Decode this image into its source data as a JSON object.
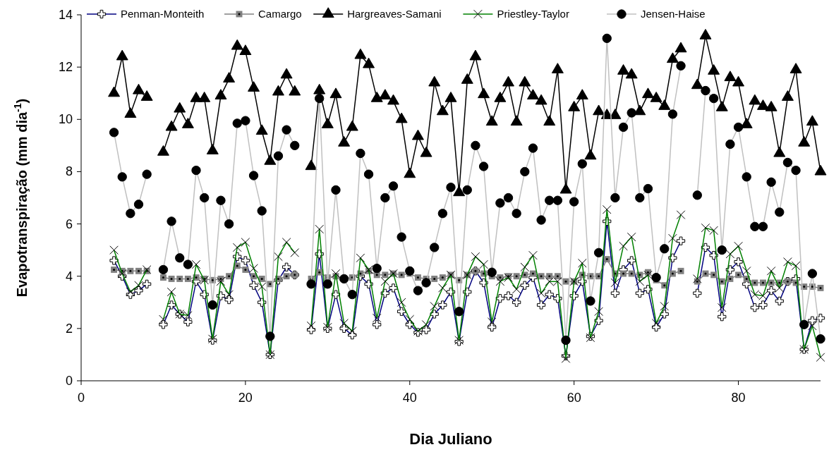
{
  "chart_data": {
    "type": "line",
    "xlabel": "Dia Juliano",
    "ylabel": "Evapotranspiração (mm dia$^{-1}$)",
    "xlim": [
      0,
      90
    ],
    "xticks": [
      0,
      20,
      40,
      60,
      80
    ],
    "ylim": [
      0,
      14
    ],
    "yticks": [
      0,
      2,
      4,
      6,
      8,
      10,
      12,
      14
    ],
    "grid": false,
    "legend": "top",
    "x": [
      4,
      5,
      6,
      7,
      8,
      9,
      10,
      11,
      12,
      13,
      14,
      15,
      16,
      17,
      18,
      19,
      20,
      21,
      22,
      23,
      24,
      25,
      26,
      27,
      28,
      29,
      30,
      31,
      32,
      33,
      34,
      35,
      36,
      37,
      38,
      39,
      40,
      41,
      42,
      43,
      44,
      45,
      46,
      47,
      48,
      49,
      50,
      51,
      52,
      53,
      54,
      55,
      56,
      57,
      58,
      59,
      60,
      61,
      62,
      63,
      64,
      65,
      66,
      67,
      68,
      69,
      70,
      71,
      72,
      73,
      74,
      75,
      76,
      77,
      78,
      79,
      80,
      81,
      82,
      83,
      84,
      85,
      86,
      87,
      88,
      89,
      90
    ],
    "series": [
      {
        "name": "Penman-Monteith",
        "color": "#000080",
        "marker": "cross",
        "values": [
          4.6,
          4.0,
          3.3,
          3.45,
          3.7,
          null,
          2.15,
          2.9,
          2.55,
          2.25,
          3.8,
          3.3,
          1.55,
          3.25,
          3.1,
          4.75,
          4.6,
          3.65,
          3.0,
          1.0,
          3.85,
          4.35,
          4.05,
          null,
          1.95,
          4.85,
          2.0,
          3.3,
          2.0,
          1.75,
          4.0,
          3.7,
          2.15,
          3.35,
          3.55,
          2.65,
          2.15,
          1.85,
          1.95,
          2.55,
          2.9,
          3.4,
          1.5,
          3.4,
          4.2,
          3.75,
          2.05,
          3.15,
          3.25,
          3.0,
          3.65,
          3.95,
          2.9,
          3.3,
          3.15,
          0.95,
          3.25,
          3.8,
          1.7,
          2.3,
          6.1,
          3.35,
          4.25,
          4.6,
          3.35,
          3.5,
          2.05,
          2.55,
          4.7,
          5.35,
          null,
          3.35,
          5.1,
          4.8,
          2.45,
          4.25,
          4.55,
          3.7,
          2.8,
          2.9,
          3.45,
          3.05,
          3.8,
          3.9,
          1.2,
          2.3,
          2.4
        ]
      },
      {
        "name": "Camargo",
        "color": "#808080",
        "marker": "square",
        "values": [
          4.25,
          4.2,
          4.2,
          4.2,
          4.2,
          null,
          3.95,
          3.9,
          3.9,
          3.9,
          3.95,
          3.9,
          3.85,
          3.9,
          4.0,
          4.4,
          4.25,
          4.0,
          3.9,
          3.7,
          3.9,
          4.0,
          4.05,
          null,
          3.9,
          4.15,
          3.95,
          4.0,
          3.9,
          3.95,
          4.1,
          4.2,
          4.05,
          4.05,
          4.1,
          4.05,
          4.1,
          3.95,
          3.9,
          3.9,
          3.95,
          4.05,
          3.85,
          4.05,
          4.2,
          4.1,
          4.0,
          3.95,
          4.0,
          4.0,
          4.05,
          4.1,
          4.0,
          4.0,
          4.0,
          3.8,
          3.8,
          4.05,
          4.0,
          4.0,
          4.65,
          4.1,
          4.1,
          4.1,
          4.05,
          4.15,
          3.85,
          3.65,
          4.1,
          4.2,
          null,
          3.8,
          4.1,
          4.05,
          3.8,
          3.9,
          4.05,
          3.9,
          3.75,
          3.75,
          3.75,
          3.75,
          3.8,
          3.75,
          3.6,
          3.6,
          3.55
        ]
      },
      {
        "name": "Hargreaves-Samani",
        "color": "#000000",
        "marker": "triangle",
        "values": [
          11.0,
          12.4,
          10.2,
          11.1,
          10.85,
          null,
          8.75,
          9.7,
          10.4,
          9.8,
          10.8,
          10.8,
          8.8,
          10.9,
          11.55,
          12.8,
          12.6,
          11.2,
          9.55,
          8.4,
          11.05,
          11.7,
          11.05,
          null,
          8.2,
          11.1,
          9.8,
          10.95,
          9.1,
          9.7,
          12.45,
          12.1,
          10.8,
          10.9,
          10.7,
          10.0,
          7.9,
          9.35,
          8.7,
          11.4,
          10.3,
          10.8,
          7.2,
          11.5,
          12.4,
          10.95,
          9.9,
          10.8,
          11.4,
          9.9,
          11.4,
          10.9,
          10.7,
          9.9,
          11.9,
          7.3,
          10.45,
          10.9,
          8.6,
          10.3,
          10.15,
          10.15,
          11.85,
          11.7,
          10.3,
          10.95,
          10.8,
          10.5,
          12.3,
          12.7,
          null,
          11.3,
          13.2,
          11.85,
          10.45,
          11.6,
          11.4,
          9.8,
          10.7,
          10.5,
          10.45,
          8.7,
          10.85,
          11.9,
          9.1,
          9.9,
          8.0
        ]
      },
      {
        "name": "Priestley-Taylor",
        "color": "#008000",
        "marker": "x",
        "values": [
          5.0,
          4.1,
          3.4,
          3.65,
          4.25,
          null,
          2.35,
          3.4,
          2.55,
          2.5,
          4.45,
          3.85,
          1.6,
          3.8,
          3.3,
          5.1,
          5.3,
          4.3,
          3.6,
          1.0,
          4.75,
          5.3,
          4.9,
          null,
          2.1,
          5.8,
          2.05,
          4.1,
          2.2,
          1.9,
          4.7,
          4.25,
          2.4,
          3.8,
          4.1,
          3.0,
          2.35,
          1.9,
          2.15,
          2.85,
          3.55,
          4.05,
          1.55,
          4.05,
          4.75,
          4.45,
          2.25,
          3.8,
          3.95,
          3.5,
          4.35,
          4.8,
          3.35,
          3.8,
          3.8,
          0.85,
          3.8,
          4.5,
          1.65,
          2.65,
          6.55,
          3.75,
          5.15,
          5.5,
          3.8,
          4.05,
          2.2,
          2.85,
          5.45,
          6.35,
          null,
          3.9,
          5.85,
          5.75,
          2.8,
          4.85,
          5.15,
          4.2,
          3.3,
          3.25,
          4.2,
          3.55,
          4.55,
          4.4,
          1.2,
          2.1,
          0.9
        ]
      },
      {
        "name": "Jensen-Haise",
        "color": "#c0c0c0",
        "marker": "circle",
        "values": [
          9.5,
          7.8,
          6.4,
          6.75,
          7.9,
          null,
          4.25,
          6.1,
          4.7,
          4.45,
          8.05,
          7.0,
          2.9,
          6.9,
          6.0,
          9.85,
          9.95,
          7.85,
          6.5,
          1.7,
          8.6,
          9.6,
          9.0,
          null,
          3.7,
          10.8,
          3.7,
          7.3,
          3.9,
          3.3,
          8.7,
          7.9,
          4.3,
          7.0,
          7.45,
          5.5,
          4.2,
          3.45,
          3.75,
          5.1,
          6.4,
          7.4,
          2.65,
          7.3,
          9.0,
          8.2,
          4.15,
          6.8,
          7.0,
          6.4,
          8.0,
          8.9,
          6.15,
          6.9,
          6.9,
          1.55,
          6.85,
          8.3,
          3.05,
          4.9,
          13.1,
          7.0,
          9.7,
          10.25,
          7.0,
          7.35,
          3.95,
          5.05,
          10.2,
          12.05,
          null,
          7.1,
          11.1,
          10.8,
          5.0,
          9.05,
          9.7,
          7.8,
          5.9,
          5.9,
          7.6,
          6.45,
          8.35,
          8.05,
          2.15,
          4.1,
          1.6
        ]
      }
    ]
  }
}
